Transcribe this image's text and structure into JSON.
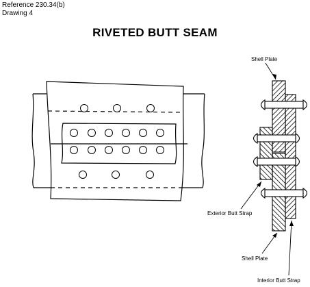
{
  "header": {
    "reference": "Reference 230.34(b)",
    "drawing": "Drawing 4"
  },
  "title": "RIVETED BUTT SEAM",
  "labels": {
    "shell_plate_top": "Shell Plate",
    "exterior_butt_strap": "Exterior Butt Strap",
    "shell_plate_bottom": "Shell Plate",
    "interior_butt_strap": "Interior Butt Strap"
  },
  "colors": {
    "ink": "#000000",
    "paper": "#ffffff"
  }
}
